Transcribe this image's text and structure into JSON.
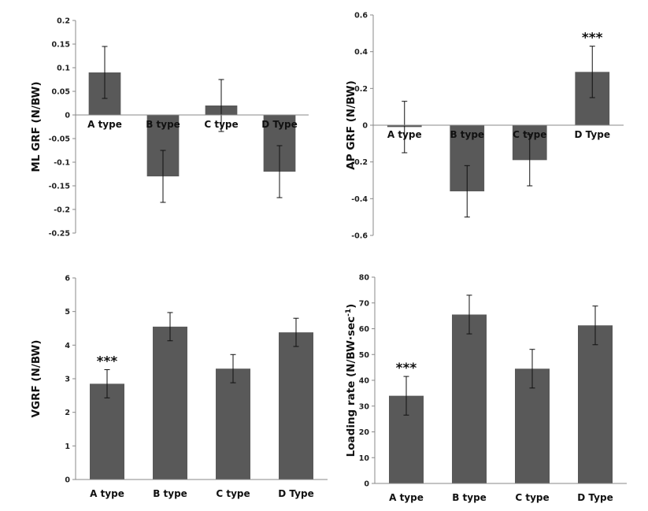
{
  "chart_data": [
    {
      "type": "bar",
      "ylabel": "ML GRF (N/BW)",
      "categories": [
        "A type",
        "B type",
        "C type",
        "D Type"
      ],
      "values": [
        0.09,
        -0.13,
        0.02,
        -0.12
      ],
      "errors": [
        0.055,
        0.055,
        0.055,
        0.055
      ],
      "ylim": [
        -0.25,
        0.2
      ],
      "yticks": [
        -0.25,
        -0.2,
        -0.15,
        -0.1,
        -0.05,
        0,
        0.05,
        0.1,
        0.15,
        0.2
      ],
      "ytick_labels": [
        "-0.25",
        "-0.2",
        "-0.15",
        "-0.1",
        "-0.05",
        "0",
        "0.05",
        "0.1",
        "0.15",
        "0.2"
      ],
      "significance": [
        "",
        "",
        "",
        ""
      ],
      "bar_color": "#595959",
      "grid": false
    },
    {
      "type": "bar",
      "ylabel": "AP GRF (N/BW)",
      "categories": [
        "A type",
        "B type",
        "C type",
        "D Type"
      ],
      "values": [
        -0.01,
        -0.36,
        -0.19,
        0.29
      ],
      "errors": [
        0.14,
        0.14,
        0.14,
        0.14
      ],
      "ylim": [
        -0.6,
        0.6
      ],
      "yticks": [
        -0.6,
        -0.4,
        -0.2,
        0,
        0.2,
        0.4,
        0.6
      ],
      "ytick_labels": [
        "-0.6",
        "-0.4",
        "-0.2",
        "0",
        "0.2",
        "0.4",
        "0.6"
      ],
      "significance": [
        "",
        "",
        "",
        "***"
      ],
      "bar_color": "#595959",
      "grid": false
    },
    {
      "type": "bar",
      "ylabel": "VGRF (N/BW)",
      "categories": [
        "A type",
        "B type",
        "C type",
        "D Type"
      ],
      "values": [
        2.85,
        4.55,
        3.3,
        4.38
      ],
      "errors": [
        0.42,
        0.42,
        0.42,
        0.42
      ],
      "ylim": [
        0,
        6
      ],
      "yticks": [
        0,
        1,
        2,
        3,
        4,
        5,
        6
      ],
      "ytick_labels": [
        "0",
        "1",
        "2",
        "3",
        "4",
        "5",
        "6"
      ],
      "significance": [
        "***",
        "",
        "",
        ""
      ],
      "bar_color": "#595959",
      "grid": false
    },
    {
      "type": "bar",
      "ylabel": "Loading rate (N/BW·sec",
      "ylabel_sup": "-1",
      "ylabel_close": ")",
      "categories": [
        "A type",
        "B type",
        "C type",
        "D Type"
      ],
      "values": [
        34,
        65.5,
        44.5,
        61.3
      ],
      "errors": [
        7.5,
        7.5,
        7.5,
        7.5
      ],
      "ylim": [
        0,
        80
      ],
      "yticks": [
        0,
        10,
        20,
        30,
        40,
        50,
        60,
        70,
        80
      ],
      "ytick_labels": [
        "0",
        "10",
        "20",
        "30",
        "40",
        "50",
        "60",
        "70",
        "80"
      ],
      "significance": [
        "***",
        "",
        "",
        ""
      ],
      "bar_color": "#595959",
      "grid": false
    }
  ]
}
